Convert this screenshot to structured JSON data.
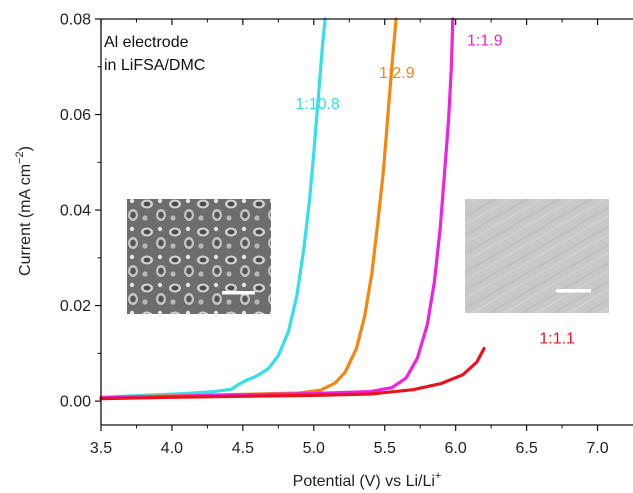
{
  "chart_data": {
    "type": "line",
    "xlabel": "Potential (V) vs Li/Li",
    "xlabel_sup": "+",
    "ylabel_prefix": "Current (mA cm",
    "ylabel_sup": "−2",
    "ylabel_suffix": ")",
    "xlim": [
      3.5,
      7.25
    ],
    "ylim": [
      -0.005,
      0.08
    ],
    "x_ticks": [
      3.5,
      4.0,
      4.5,
      5.0,
      5.5,
      6.0,
      6.5,
      7.0
    ],
    "x_tick_labels": [
      "3.5",
      "4.0",
      "4.5",
      "5.0",
      "5.5",
      "6.0",
      "6.5",
      "7.0"
    ],
    "y_ticks": [
      0.0,
      0.02,
      0.04,
      0.06,
      0.08
    ],
    "y_tick_labels": [
      "0.00",
      "0.02",
      "0.04",
      "0.06",
      "0.08"
    ],
    "annotation": [
      "Al electrode",
      "in LiFSA/DMC"
    ],
    "series": [
      {
        "name": "1:10.8",
        "color": "#33e0e8",
        "label_at": [
          4.87,
          0.0612
        ],
        "points": [
          [
            3.5,
            0.0008
          ],
          [
            3.8,
            0.0012
          ],
          [
            4.1,
            0.0016
          ],
          [
            4.3,
            0.002
          ],
          [
            4.42,
            0.0025
          ],
          [
            4.47,
            0.0035
          ],
          [
            4.52,
            0.0043
          ],
          [
            4.6,
            0.0053
          ],
          [
            4.68,
            0.0068
          ],
          [
            4.75,
            0.0095
          ],
          [
            4.82,
            0.0145
          ],
          [
            4.88,
            0.022
          ],
          [
            4.93,
            0.032
          ],
          [
            4.97,
            0.042
          ],
          [
            5.0,
            0.052
          ],
          [
            5.03,
            0.063
          ],
          [
            5.06,
            0.074
          ],
          [
            5.08,
            0.08
          ]
        ]
      },
      {
        "name": "1:2.9",
        "color": "#f5860f",
        "label_at": [
          5.46,
          0.0676
        ],
        "points": [
          [
            3.5,
            0.0008
          ],
          [
            4.0,
            0.0011
          ],
          [
            4.5,
            0.0014
          ],
          [
            4.9,
            0.0017
          ],
          [
            5.05,
            0.0023
          ],
          [
            5.15,
            0.0038
          ],
          [
            5.22,
            0.006
          ],
          [
            5.3,
            0.011
          ],
          [
            5.36,
            0.018
          ],
          [
            5.41,
            0.027
          ],
          [
            5.45,
            0.037
          ],
          [
            5.49,
            0.048
          ],
          [
            5.52,
            0.059
          ],
          [
            5.55,
            0.07
          ],
          [
            5.58,
            0.08
          ]
        ]
      },
      {
        "name": "1:1.9",
        "color": "#ee22e0",
        "label_at": [
          6.08,
          0.0745
        ],
        "points": [
          [
            3.5,
            0.0007
          ],
          [
            4.0,
            0.001
          ],
          [
            4.5,
            0.0013
          ],
          [
            5.0,
            0.0016
          ],
          [
            5.4,
            0.002
          ],
          [
            5.55,
            0.0028
          ],
          [
            5.65,
            0.0048
          ],
          [
            5.73,
            0.009
          ],
          [
            5.8,
            0.016
          ],
          [
            5.85,
            0.025
          ],
          [
            5.89,
            0.036
          ],
          [
            5.92,
            0.047
          ],
          [
            5.95,
            0.059
          ],
          [
            5.97,
            0.07
          ],
          [
            5.98,
            0.08
          ]
        ]
      },
      {
        "name": "1:1.1",
        "color": "#e8141e",
        "label_at": [
          6.59,
          0.0121
        ],
        "points": [
          [
            3.5,
            0.0005
          ],
          [
            4.0,
            0.0008
          ],
          [
            4.5,
            0.001
          ],
          [
            5.0,
            0.0012
          ],
          [
            5.4,
            0.0015
          ],
          [
            5.7,
            0.0024
          ],
          [
            5.9,
            0.0037
          ],
          [
            6.05,
            0.0055
          ],
          [
            6.15,
            0.0082
          ],
          [
            6.2,
            0.011
          ]
        ]
      }
    ]
  }
}
